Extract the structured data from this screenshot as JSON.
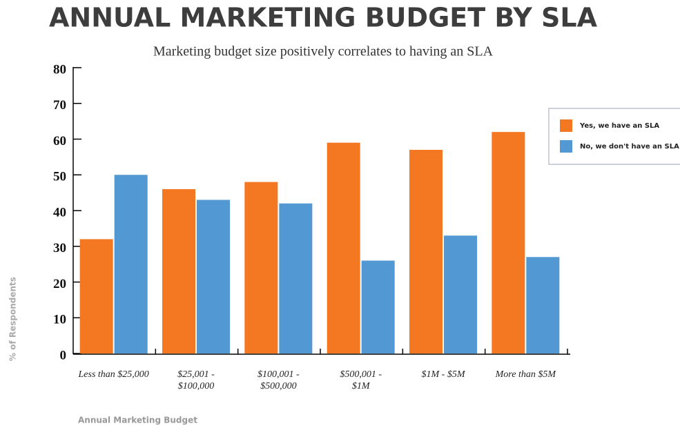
{
  "chart_data": {
    "type": "bar",
    "title": "ANNUAL MARKETING BUDGET BY SLA",
    "subtitle": "Marketing budget size positively correlates to having an SLA",
    "x_label": "Annual Marketing Budget",
    "y_label": "% of Respondents",
    "categories": [
      [
        "Less than $25,000"
      ],
      [
        "$25,001 -",
        "$100,000"
      ],
      [
        "$100,001 -",
        "$500,000"
      ],
      [
        "$500,001 -",
        "$1M"
      ],
      [
        "$1M - $5M"
      ],
      [
        "More than $5M"
      ]
    ],
    "series": [
      {
        "name": "Yes, we have an SLA",
        "color": "#f47721",
        "values": [
          32,
          46,
          48,
          59,
          57,
          62
        ]
      },
      {
        "name": "No, we don't have an SLA",
        "color": "#5299d3",
        "values": [
          50,
          43,
          42,
          26,
          33,
          27
        ]
      }
    ],
    "ylim": [
      0,
      80
    ],
    "yticks": [
      0,
      10,
      20,
      30,
      40,
      50,
      60,
      70,
      80
    ],
    "legend": "right"
  }
}
